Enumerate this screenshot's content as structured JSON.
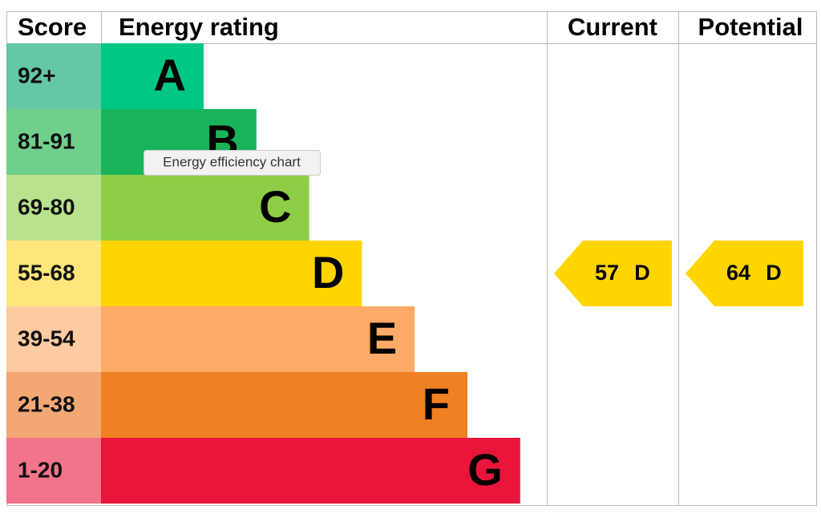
{
  "header": {
    "score": "Score",
    "rating": "Energy rating",
    "current": "Current",
    "potential": "Potential"
  },
  "bands": [
    {
      "score": "92+",
      "letter": "A",
      "color": "#00c781",
      "light": "#64c7a7"
    },
    {
      "score": "81-91",
      "letter": "B",
      "color": "#19b459",
      "light": "#6fcf8c"
    },
    {
      "score": "69-80",
      "letter": "C",
      "color": "#8dce46",
      "light": "#b8e28d"
    },
    {
      "score": "55-68",
      "letter": "D",
      "color": "#ffd500",
      "light": "#ffe57a"
    },
    {
      "score": "39-54",
      "letter": "E",
      "color": "#fcaa65",
      "light": "#fdcaa1"
    },
    {
      "score": "21-38",
      "letter": "F",
      "color": "#ef8023",
      "light": "#f3a874"
    },
    {
      "score": "1-20",
      "letter": "G",
      "color": "#e9153b",
      "light": "#f1748a"
    }
  ],
  "current": {
    "score": 57,
    "rating": "D"
  },
  "potential": {
    "score": 64,
    "rating": "D"
  },
  "tooltip": "Energy efficiency chart"
}
